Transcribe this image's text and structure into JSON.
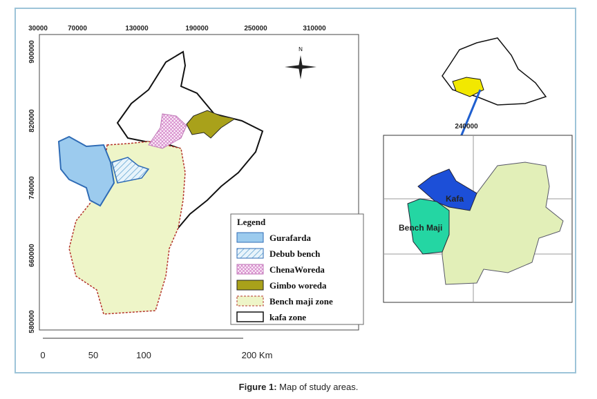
{
  "map": {
    "top_coords": [
      "30000",
      "70000",
      "130000",
      "190000",
      "250000",
      "310000"
    ],
    "left_coords": [
      "900000",
      "820000",
      "740000",
      "660000",
      "580000"
    ],
    "north": "N",
    "legend": {
      "title": "Legend",
      "items": [
        "Gurafarda",
        "Debub bench",
        "ChenaWoreda",
        "Gimbo woreda",
        "Bench maji zone",
        "kafa zone"
      ]
    },
    "scale": [
      "0",
      "50",
      "100",
      "200 Km"
    ],
    "inset": {
      "coord": "240000",
      "kafa": "Kafa",
      "bench": "Bench Maji"
    }
  },
  "caption": {
    "label": "Figure 1:",
    "text": "Map of study areas."
  }
}
